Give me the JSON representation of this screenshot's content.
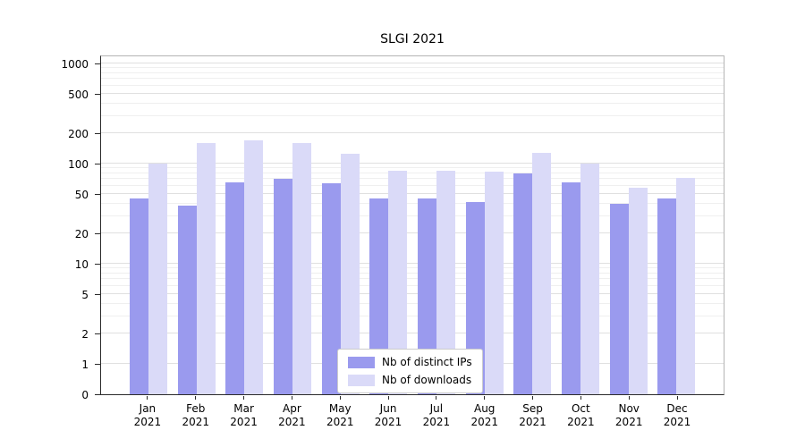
{
  "chart_data": {
    "type": "bar",
    "title": "SLGI 2021",
    "categories": [
      "Jan",
      "Feb",
      "Mar",
      "Apr",
      "May",
      "Jun",
      "Jul",
      "Aug",
      "Sep",
      "Oct",
      "Nov",
      "Dec"
    ],
    "x_year": "2021",
    "series": [
      {
        "key": "distinct-ips",
        "name": "Nb of distinct IPs",
        "color": "#9a9aee",
        "values": [
          45,
          38,
          65,
          70,
          64,
          45,
          45,
          41,
          80,
          65,
          40,
          45
        ]
      },
      {
        "key": "downloads",
        "name": "Nb of downloads",
        "color": "#dadaf8",
        "values": [
          100,
          160,
          170,
          160,
          125,
          85,
          85,
          83,
          128,
          100,
          58,
          72
        ]
      }
    ],
    "y_axis": {
      "scale": "symlog",
      "ticks": [
        {
          "value": 1000,
          "label": "1000"
        },
        {
          "value": 500,
          "label": "500"
        },
        {
          "value": 200,
          "label": "200"
        },
        {
          "value": 100,
          "label": "100"
        },
        {
          "value": 50,
          "label": "50"
        },
        {
          "value": 20,
          "label": "20"
        },
        {
          "value": 10,
          "label": "10"
        },
        {
          "value": 5,
          "label": "5"
        },
        {
          "value": 2,
          "label": "2"
        },
        {
          "value": 1,
          "label": "1"
        },
        {
          "value": 0,
          "label": "0"
        }
      ],
      "minor_gridlines": [
        3,
        4,
        6,
        7,
        8,
        9,
        30,
        40,
        60,
        70,
        80,
        90,
        300,
        400,
        600,
        700,
        800,
        900
      ]
    },
    "legend": {
      "position": "lower center",
      "entries": [
        "Nb of distinct IPs",
        "Nb of downloads"
      ]
    },
    "grid": true
  }
}
